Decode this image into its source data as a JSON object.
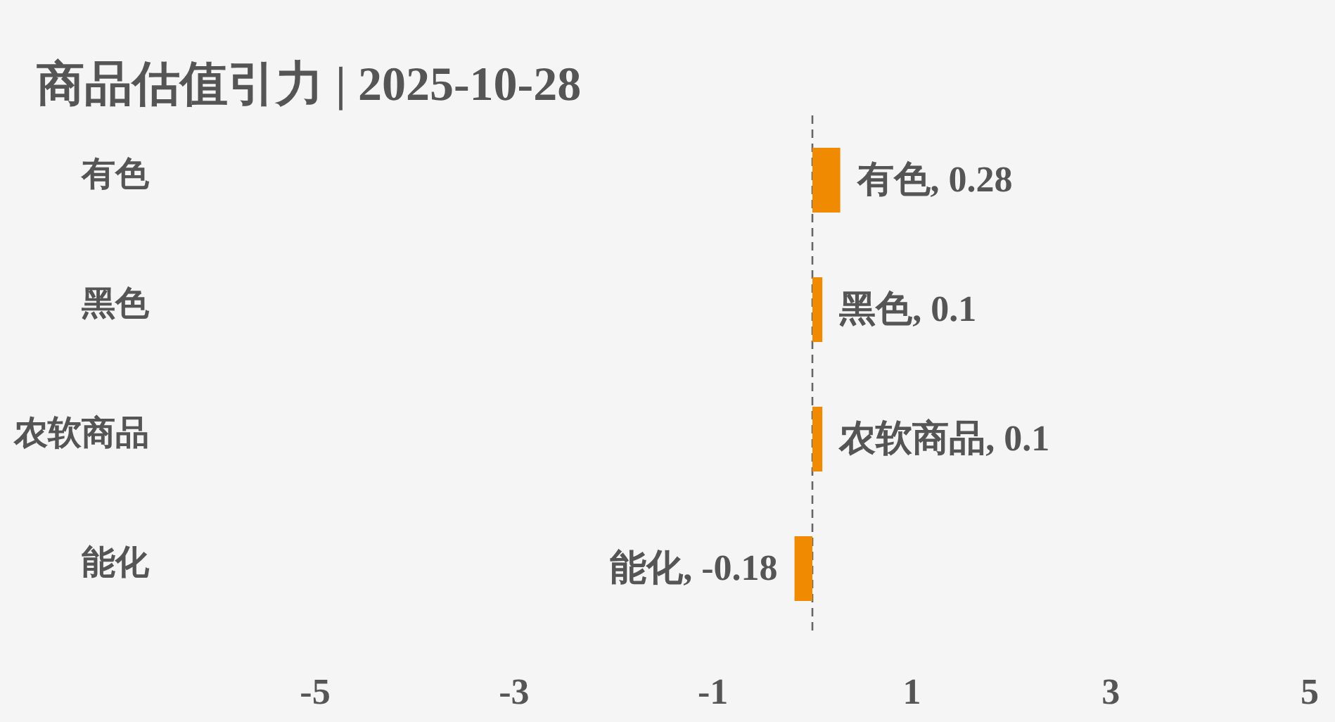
{
  "chart_data": {
    "type": "bar",
    "orientation": "horizontal",
    "title": "商品估值引力 | 2025-10-28",
    "categories": [
      "有色",
      "黑色",
      "农软商品",
      "能化"
    ],
    "values": [
      0.28,
      0.1,
      0.1,
      -0.18
    ],
    "value_labels": [
      "有色, 0.28",
      "黑色, 0.1",
      "农软商品, 0.1",
      "能化, -0.18"
    ],
    "color": "#f08a00",
    "xlim": [
      -5,
      5
    ],
    "xticks": [
      -5,
      -3,
      -1,
      1,
      3,
      5
    ],
    "ref_lines": [
      {
        "axis": "x",
        "value": 0,
        "color": "#666666",
        "line_style": "dashed"
      }
    ],
    "grid": false
  }
}
